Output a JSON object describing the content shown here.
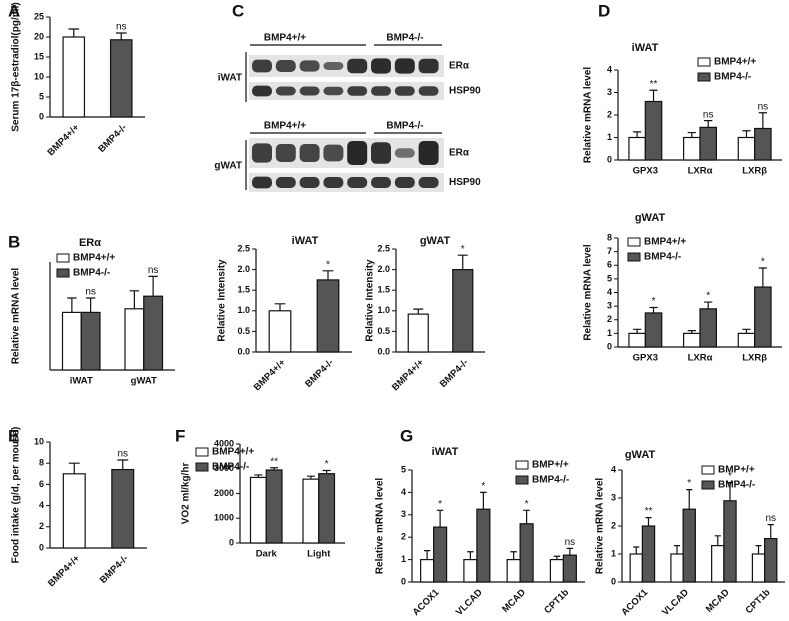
{
  "blots": {
    "panel": "C",
    "blocks": [
      {
        "tissue": "iWAT",
        "groups": [
          "BMP4+/+",
          "BMP4-/-"
        ],
        "proteins": [
          "ERα",
          "HSP90"
        ]
      },
      {
        "tissue": "gWAT",
        "groups": [
          "BMP4+/+",
          "BMP4-/-"
        ],
        "proteins": [
          "ERα",
          "HSP90"
        ]
      }
    ]
  },
  "chart_data": [
    {
      "type": "bar",
      "panel": "A",
      "y_label": "Serum 17β-estradiol(pg/ml)",
      "categories": [
        "BMP4+/+",
        "BMP4-/-"
      ],
      "values": [
        20,
        19.3
      ],
      "errors": [
        2,
        1.7
      ],
      "colors": [
        "#ffffff",
        "#555555"
      ],
      "annotations": [
        null,
        "ns"
      ],
      "ylim": [
        0,
        25
      ],
      "yticks": [
        0,
        5,
        10,
        15,
        20,
        25
      ]
    },
    {
      "type": "grouped_bar",
      "panel": "B",
      "title": "ERα",
      "y_label": "Relative mRNA level",
      "categories": [
        "iWAT",
        "gWAT"
      ],
      "series": [
        {
          "name": "BMP4+/+",
          "color": "#ffffff",
          "values": [
            1.6,
            1.7
          ],
          "errors": [
            0.4,
            0.5
          ]
        },
        {
          "name": "BMP4-/-",
          "color": "#555555",
          "values": [
            1.6,
            2.05
          ],
          "errors": [
            0.4,
            0.55
          ],
          "annotations": [
            "ns",
            "ns"
          ]
        }
      ],
      "ylim": [
        0,
        3
      ]
    },
    {
      "type": "bar",
      "title": "iWAT",
      "y_label": "Relative Intensity",
      "categories": [
        "BMP4+/+",
        "BMP4-/-"
      ],
      "values": [
        1.0,
        1.75
      ],
      "errors": [
        0.17,
        0.22
      ],
      "colors": [
        "#ffffff",
        "#555555"
      ],
      "annotations": [
        null,
        "*"
      ],
      "ylim": [
        0,
        2.5
      ],
      "yticks": [
        {
          "value": 0,
          "label": "0.0"
        },
        0.5,
        {
          "value": 1,
          "label": "1.0"
        },
        1.5,
        {
          "value": 2,
          "label": "2.0"
        },
        2.5
      ]
    },
    {
      "type": "bar",
      "title": "gWAT",
      "y_label": "Relative Intensity",
      "categories": [
        "BMP4+/+",
        "BMP4-/-"
      ],
      "values": [
        0.92,
        2.0
      ],
      "errors": [
        0.12,
        0.35
      ],
      "colors": [
        "#ffffff",
        "#555555"
      ],
      "annotations": [
        null,
        "*"
      ],
      "ylim": [
        0,
        2.5
      ],
      "yticks": [
        {
          "value": 0,
          "label": "0.0"
        },
        0.5,
        {
          "value": 1,
          "label": "1.0"
        },
        1.5,
        {
          "value": 2,
          "label": "2.0"
        },
        2.5
      ]
    },
    {
      "type": "grouped_bar",
      "panel": "D",
      "title": "iWAT",
      "y_label": "Relative mRNA level",
      "categories": [
        "GPX3",
        "LXRα",
        "LXRβ"
      ],
      "series": [
        {
          "name": "BMP4+/+",
          "color": "#ffffff",
          "values": [
            1,
            1,
            1
          ],
          "errors": [
            0.25,
            0.22,
            0.3
          ]
        },
        {
          "name": "BMP4-/-",
          "color": "#555555",
          "values": [
            2.6,
            1.45,
            1.4
          ],
          "errors": [
            0.5,
            0.3,
            0.7
          ],
          "annotations": [
            "**",
            "ns",
            "ns"
          ]
        }
      ],
      "ylim": [
        0,
        4
      ],
      "yticks": [
        0,
        1,
        2,
        3,
        4
      ]
    },
    {
      "type": "grouped_bar",
      "title": "gWAT",
      "y_label": "Relative mRNA level",
      "categories": [
        "GPX3",
        "LXRα",
        "LXRβ"
      ],
      "series": [
        {
          "name": "BMP4+/+",
          "color": "#ffffff",
          "values": [
            1,
            1,
            1
          ],
          "errors": [
            0.3,
            0.2,
            0.3
          ]
        },
        {
          "name": "BMP4-/-",
          "color": "#555555",
          "values": [
            2.5,
            2.8,
            4.4
          ],
          "errors": [
            0.4,
            0.5,
            1.4
          ],
          "annotations": [
            "*",
            "*",
            "*"
          ]
        }
      ],
      "ylim": [
        0,
        8
      ],
      "yticks": [
        0,
        1,
        2,
        3,
        4,
        5,
        6,
        7,
        8
      ]
    },
    {
      "type": "bar",
      "panel": "E",
      "y_label": "Food intake (g/d, per mouse)",
      "categories": [
        "BMP4+/+",
        "BMP4-/-"
      ],
      "values": [
        7,
        7.4
      ],
      "errors": [
        1,
        0.9
      ],
      "colors": [
        "#ffffff",
        "#555555"
      ],
      "annotations": [
        null,
        "ns"
      ],
      "ylim": [
        0,
        10
      ],
      "yticks": [
        0,
        2,
        4,
        6,
        8,
        10
      ]
    },
    {
      "type": "grouped_bar",
      "panel": "F",
      "y_label": "VO2 ml/kg/hr",
      "categories": [
        "Dark",
        "Light"
      ],
      "series": [
        {
          "name": "BMP4+/+",
          "color": "#ffffff",
          "values": [
            2650,
            2580
          ],
          "errors": [
            100,
            120
          ]
        },
        {
          "name": "BMP4-/-",
          "color": "#555555",
          "values": [
            2950,
            2800
          ],
          "errors": [
            90,
            130
          ],
          "annotations": [
            "**",
            "*"
          ]
        }
      ],
      "ylim": [
        0,
        4000
      ],
      "yticks": [
        0,
        1000,
        2000,
        3000,
        4000
      ]
    },
    {
      "type": "grouped_bar",
      "panel": "G",
      "title": "iWAT",
      "y_label": "Relative mRNA level",
      "categories": [
        "ACOX1",
        "VLCAD",
        "MCAD",
        "CPT1b"
      ],
      "series": [
        {
          "name": "BMP+/+",
          "color": "#ffffff",
          "values": [
            1,
            1,
            1,
            1
          ],
          "errors": [
            0.4,
            0.35,
            0.35,
            0.15
          ]
        },
        {
          "name": "BMP4-/-",
          "color": "#555555",
          "values": [
            2.45,
            3.25,
            2.6,
            1.2
          ],
          "errors": [
            0.75,
            0.75,
            0.6,
            0.3
          ],
          "annotations": [
            "*",
            "*",
            "*",
            "ns"
          ]
        }
      ],
      "ylim": [
        0,
        5
      ],
      "yticks": [
        0,
        1,
        2,
        3,
        4,
        5
      ]
    },
    {
      "type": "grouped_bar",
      "title": "gWAT",
      "y_label": "Relative mRNA level",
      "categories": [
        "ACOX1",
        "VLCAD",
        "MCAD",
        "CPT1b"
      ],
      "series": [
        {
          "name": "BMP+/+",
          "color": "#ffffff",
          "values": [
            1,
            1,
            1.3,
            1
          ],
          "errors": [
            0.25,
            0.3,
            0.35,
            0.3
          ]
        },
        {
          "name": "BMP4-/-",
          "color": "#555555",
          "values": [
            2,
            2.6,
            2.9,
            1.55
          ],
          "errors": [
            0.3,
            0.7,
            0.65,
            0.5
          ],
          "annotations": [
            "**",
            "*",
            "*",
            "ns"
          ]
        }
      ],
      "ylim": [
        0,
        4
      ],
      "yticks": [
        0,
        1,
        2,
        3,
        4
      ]
    }
  ]
}
